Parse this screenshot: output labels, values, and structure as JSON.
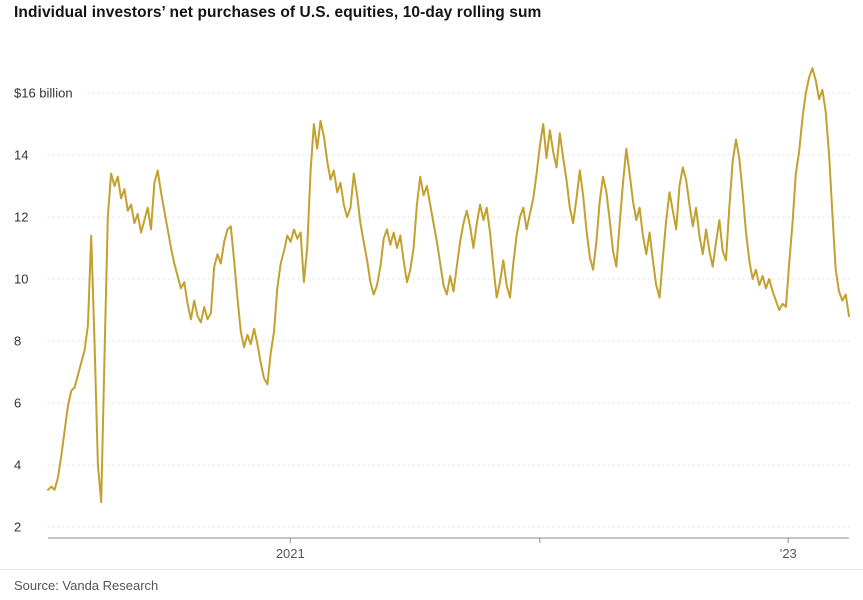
{
  "footer": {
    "source": "Source: Vanda Research"
  },
  "chart_data": {
    "type": "line",
    "title": "Individual investors’ net purchases of U.S. equities, 10-day rolling sum",
    "source": "Vanda Research",
    "series_color": "#C2A12E",
    "grid": "dotted horizontal gridlines, solid bottom axis",
    "legend": "none",
    "xlabel": "",
    "ylabel": "$ billion",
    "ylim": [
      1.6,
      17.4
    ],
    "y_axis": {
      "top_label": "$16 billion",
      "ticks": [
        16,
        14,
        12,
        10,
        8,
        6,
        4,
        2
      ]
    },
    "x_axis": {
      "labels": [
        {
          "text": "2021",
          "pos": 0.3025
        },
        {
          "text": "’23",
          "pos": 0.924
        }
      ],
      "tick_positions": [
        0.3025,
        0.614,
        0.924
      ]
    },
    "values": [
      3.2,
      3.3,
      3.2,
      3.6,
      4.3,
      5.1,
      5.9,
      6.4,
      6.5,
      6.9,
      7.3,
      7.7,
      8.5,
      11.4,
      8.0,
      4.0,
      2.8,
      7.5,
      12.0,
      13.4,
      13.0,
      13.3,
      12.6,
      12.9,
      12.2,
      12.4,
      11.8,
      12.1,
      11.5,
      11.9,
      12.3,
      11.6,
      13.1,
      13.5,
      12.8,
      12.2,
      11.6,
      11.0,
      10.5,
      10.1,
      9.7,
      9.9,
      9.2,
      8.7,
      9.3,
      8.8,
      8.6,
      9.1,
      8.7,
      8.9,
      10.4,
      10.8,
      10.5,
      11.2,
      11.6,
      11.7,
      10.6,
      9.4,
      8.3,
      7.8,
      8.2,
      7.9,
      8.4,
      7.9,
      7.3,
      6.8,
      6.6,
      7.6,
      8.3,
      9.7,
      10.5,
      10.9,
      11.4,
      11.2,
      11.6,
      11.3,
      11.5,
      9.9,
      11.0,
      13.5,
      15.0,
      14.2,
      15.1,
      14.6,
      13.8,
      13.2,
      13.5,
      12.8,
      13.1,
      12.4,
      12.0,
      12.3,
      13.4,
      12.7,
      11.8,
      11.2,
      10.6,
      9.9,
      9.5,
      9.8,
      10.4,
      11.3,
      11.6,
      11.1,
      11.5,
      11.0,
      11.4,
      10.6,
      9.9,
      10.3,
      11.0,
      12.4,
      13.3,
      12.7,
      13.0,
      12.4,
      11.8,
      11.2,
      10.5,
      9.8,
      9.5,
      10.1,
      9.6,
      10.4,
      11.2,
      11.8,
      12.2,
      11.7,
      11.0,
      11.8,
      12.4,
      11.9,
      12.3,
      11.5,
      10.4,
      9.4,
      9.9,
      10.6,
      9.8,
      9.4,
      10.5,
      11.4,
      12.0,
      12.3,
      11.6,
      12.1,
      12.6,
      13.4,
      14.3,
      15.0,
      13.9,
      14.8,
      14.1,
      13.6,
      14.7,
      13.9,
      13.2,
      12.3,
      11.8,
      12.6,
      13.5,
      12.7,
      11.6,
      10.7,
      10.3,
      11.2,
      12.5,
      13.3,
      12.8,
      11.9,
      10.9,
      10.4,
      11.8,
      13.1,
      14.2,
      13.4,
      12.5,
      11.9,
      12.3,
      11.4,
      10.8,
      11.5,
      10.6,
      9.8,
      9.4,
      10.7,
      11.9,
      12.8,
      12.2,
      11.6,
      13.0,
      13.6,
      13.2,
      12.4,
      11.7,
      12.3,
      11.4,
      10.8,
      11.6,
      10.9,
      10.4,
      11.2,
      11.9,
      10.9,
      10.6,
      12.3,
      13.8,
      14.5,
      13.9,
      12.8,
      11.5,
      10.6,
      10.0,
      10.3,
      9.8,
      10.1,
      9.7,
      10.0,
      9.6,
      9.3,
      9.0,
      9.2,
      9.1,
      10.5,
      11.8,
      13.4,
      14.1,
      15.2,
      16.0,
      16.5,
      16.8,
      16.4,
      15.8,
      16.1,
      15.4,
      14.0,
      12.1,
      10.3,
      9.6,
      9.3,
      9.5,
      8.8
    ]
  }
}
